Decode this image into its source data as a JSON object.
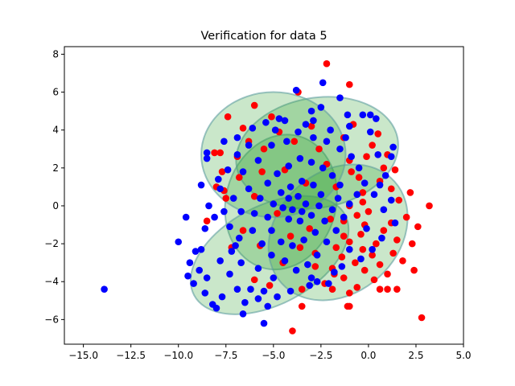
{
  "chart_data": {
    "type": "scatter",
    "title": "Verification for data 5",
    "xlabel": "",
    "ylabel": "",
    "xlim": [
      -16.0,
      5.0
    ],
    "ylim": [
      -7.3,
      8.4
    ],
    "xticks": [
      -15.0,
      -12.5,
      -10.0,
      -7.5,
      -5.0,
      -2.5,
      0.0,
      2.5,
      5.0
    ],
    "xtick_labels": [
      "−15.0",
      "−12.5",
      "−10.0",
      "−7.5",
      "−5.0",
      "−2.5",
      "0.0",
      "2.5",
      "5.0"
    ],
    "yticks": [
      -6,
      -4,
      -2,
      0,
      2,
      4,
      6,
      8
    ],
    "ytick_labels": [
      "−6",
      "−4",
      "−2",
      "0",
      "2",
      "4",
      "6",
      "8"
    ],
    "grid": false,
    "legend": "none",
    "colors": {
      "red_points": "#ff0000",
      "blue_points": "#0000ff",
      "ellipse_fill": "#2ca02c",
      "ellipse_edge": "#5f9ea0"
    },
    "ellipses": [
      {
        "cx": -4.6,
        "cy": 0.2,
        "rx": 2.9,
        "ry": 3.6,
        "angle_deg": -15
      },
      {
        "cx": -2.7,
        "cy": 2.8,
        "rx": 4.3,
        "ry": 2.9,
        "angle_deg": 10
      },
      {
        "cx": -5.2,
        "cy": -2.6,
        "rx": 4.5,
        "ry": 2.6,
        "angle_deg": 28
      },
      {
        "cx": -1.6,
        "cy": -1.4,
        "rx": 4.0,
        "ry": 3.2,
        "angle_deg": 42
      },
      {
        "cx": -5.0,
        "cy": 2.7,
        "rx": 3.8,
        "ry": 3.3,
        "angle_deg": 0
      }
    ],
    "series": [
      {
        "color": "red",
        "points": [
          [
            -2.2,
            7.5
          ],
          [
            -1.0,
            6.4
          ],
          [
            -3.7,
            6.0
          ],
          [
            -6.0,
            5.3
          ],
          [
            -5.1,
            4.7
          ],
          [
            -7.4,
            4.7
          ],
          [
            -0.8,
            4.3
          ],
          [
            0.5,
            3.8
          ],
          [
            -6.6,
            4.1
          ],
          [
            -1.3,
            3.6
          ],
          [
            0.2,
            3.2
          ],
          [
            1.0,
            2.7
          ],
          [
            -7.8,
            2.8
          ],
          [
            -8.1,
            2.8
          ],
          [
            -6.9,
            2.6
          ],
          [
            -1.0,
            2.4
          ],
          [
            0.8,
            2.0
          ],
          [
            1.4,
            1.9
          ],
          [
            -7.7,
            1.8
          ],
          [
            -0.5,
            1.5
          ],
          [
            0.6,
            1.3
          ],
          [
            1.2,
            0.9
          ],
          [
            -7.6,
            0.8
          ],
          [
            2.2,
            0.7
          ],
          [
            -0.3,
            0.7
          ],
          [
            -7.5,
            0.4
          ],
          [
            -0.3,
            0.2
          ],
          [
            -1.0,
            0.0
          ],
          [
            3.2,
            0.0
          ],
          [
            1.6,
            0.3
          ],
          [
            0.0,
            -0.3
          ],
          [
            2.0,
            -0.6
          ],
          [
            -0.6,
            -0.5
          ],
          [
            -1.3,
            -0.8
          ],
          [
            1.2,
            -0.9
          ],
          [
            -0.2,
            -1.0
          ],
          [
            0.8,
            -1.3
          ],
          [
            2.6,
            -1.1
          ],
          [
            -0.4,
            -1.5
          ],
          [
            1.5,
            -1.8
          ],
          [
            -1.0,
            -1.9
          ],
          [
            0.4,
            -2.0
          ],
          [
            2.3,
            -2.0
          ],
          [
            -1.7,
            -2.2
          ],
          [
            -0.3,
            -2.3
          ],
          [
            1.3,
            -2.5
          ],
          [
            0.2,
            -2.6
          ],
          [
            -1.4,
            -2.7
          ],
          [
            1.8,
            -2.9
          ],
          [
            -0.7,
            -3.0
          ],
          [
            0.6,
            -3.1
          ],
          [
            -1.9,
            -3.3
          ],
          [
            2.4,
            -3.4
          ],
          [
            -0.2,
            -3.4
          ],
          [
            1.0,
            -3.6
          ],
          [
            -1.3,
            -3.8
          ],
          [
            0.3,
            -3.9
          ],
          [
            -2.3,
            -4.1
          ],
          [
            1.5,
            -4.4
          ],
          [
            -0.6,
            -4.3
          ],
          [
            -1.9,
            -4.4
          ],
          [
            0.6,
            -4.4
          ],
          [
            -1.0,
            -4.6
          ],
          [
            -1.0,
            -5.3
          ],
          [
            -3.5,
            -4.4
          ],
          [
            -5.2,
            -4.2
          ],
          [
            -6.0,
            -3.9
          ],
          [
            -3.5,
            -5.3
          ],
          [
            -1.1,
            -5.3
          ],
          [
            -4.0,
            -6.6
          ],
          [
            2.8,
            -5.9
          ],
          [
            1.0,
            -4.4
          ],
          [
            -8.5,
            -0.8
          ],
          [
            -7.2,
            -2.2
          ],
          [
            -6.6,
            -1.3
          ],
          [
            -8.0,
            1.0
          ],
          [
            -5.6,
            1.8
          ],
          [
            -4.1,
            -1.6
          ],
          [
            -2.8,
            -2.5
          ],
          [
            -3.3,
            1.2
          ],
          [
            -2.0,
            -0.7
          ],
          [
            -4.8,
            -0.4
          ],
          [
            -6.0,
            0.5
          ],
          [
            -2.6,
            3.0
          ],
          [
            -3.9,
            3.4
          ],
          [
            -5.5,
            3.0
          ],
          [
            -4.4,
            1.9
          ],
          [
            -1.7,
            1.0
          ],
          [
            -3.1,
            -1.2
          ],
          [
            -5.7,
            -2.1
          ],
          [
            -2.2,
            2.2
          ],
          [
            -1.3,
            -1.6
          ],
          [
            -4.7,
            3.9
          ],
          [
            -3.0,
            4.2
          ],
          [
            -6.3,
            3.4
          ],
          [
            -6.8,
            1.5
          ],
          [
            -1.8,
            -3.6
          ],
          [
            -2.8,
            -3.2
          ],
          [
            -4.5,
            -3.0
          ],
          [
            -3.6,
            -2.2
          ],
          [
            -0.9,
            1.8
          ],
          [
            -0.1,
            2.6
          ]
        ]
      },
      {
        "color": "blue",
        "points": [
          [
            -13.9,
            -4.4
          ],
          [
            -9.6,
            -0.6
          ],
          [
            -10.0,
            -1.9
          ],
          [
            -9.1,
            -2.4
          ],
          [
            -9.4,
            -3.0
          ],
          [
            -9.5,
            -3.7
          ],
          [
            -8.9,
            -3.4
          ],
          [
            -9.2,
            -4.1
          ],
          [
            -8.6,
            -4.6
          ],
          [
            -8.2,
            -5.2
          ],
          [
            -8.0,
            -5.4
          ],
          [
            -7.7,
            -4.8
          ],
          [
            -8.5,
            -3.8
          ],
          [
            -8.8,
            -2.3
          ],
          [
            -7.8,
            -2.9
          ],
          [
            -7.3,
            -3.6
          ],
          [
            -6.9,
            -4.4
          ],
          [
            -6.6,
            -5.7
          ],
          [
            -5.5,
            -6.2
          ],
          [
            -8.6,
            -1.2
          ],
          [
            -8.1,
            -0.6
          ],
          [
            -8.4,
            0.0
          ],
          [
            -8.8,
            1.1
          ],
          [
            -8.5,
            2.5
          ],
          [
            -8.5,
            2.8
          ],
          [
            -3.8,
            6.1
          ],
          [
            -2.5,
            5.2
          ],
          [
            -2.4,
            6.5
          ],
          [
            -1.5,
            5.7
          ],
          [
            -3.0,
            5.0
          ],
          [
            -0.3,
            4.8
          ],
          [
            0.4,
            4.6
          ],
          [
            0.1,
            4.8
          ],
          [
            -1.1,
            4.8
          ],
          [
            -2.9,
            4.5
          ],
          [
            -4.4,
            4.5
          ],
          [
            -5.4,
            4.4
          ],
          [
            -6.1,
            4.1
          ],
          [
            -6.9,
            3.6
          ],
          [
            -7.6,
            3.4
          ],
          [
            -6.9,
            2.7
          ],
          [
            -7.4,
            1.9
          ],
          [
            -7.9,
            1.4
          ],
          [
            -1.0,
            4.2
          ],
          [
            0.1,
            3.9
          ],
          [
            1.3,
            3.1
          ],
          [
            1.2,
            2.6
          ],
          [
            0.5,
            2.7
          ],
          [
            0.9,
            1.6
          ],
          [
            0.6,
            1.1
          ],
          [
            1.2,
            0.3
          ],
          [
            0.8,
            -0.2
          ],
          [
            1.4,
            -0.9
          ],
          [
            0.7,
            -1.7
          ],
          [
            0.2,
            -2.3
          ],
          [
            -0.4,
            -2.8
          ],
          [
            -1.4,
            -3.2
          ],
          [
            -1.8,
            -3.5
          ],
          [
            -2.1,
            -4.1
          ],
          [
            -3.1,
            -4.2
          ],
          [
            -4.1,
            -4.5
          ],
          [
            -4.8,
            -4.8
          ],
          [
            -5.8,
            -4.9
          ],
          [
            -6.5,
            -5.1
          ],
          [
            -6.2,
            -4.4
          ],
          [
            -5.5,
            -4.5
          ],
          [
            -5.0,
            -3.8
          ],
          [
            -5.8,
            -3.3
          ],
          [
            -6.7,
            -3.0
          ],
          [
            -7.2,
            -2.4
          ],
          [
            -6.8,
            -1.7
          ],
          [
            -7.3,
            -1.1
          ],
          [
            -6.7,
            -0.3
          ],
          [
            -7.1,
            0.4
          ],
          [
            -6.3,
            0.9
          ],
          [
            -6.6,
            1.8
          ],
          [
            -5.8,
            2.4
          ],
          [
            -5.1,
            3.2
          ],
          [
            -4.3,
            3.4
          ],
          [
            -3.7,
            3.9
          ],
          [
            -2.9,
            3.6
          ],
          [
            -2.2,
            3.4
          ],
          [
            -1.5,
            3.0
          ],
          [
            -0.9,
            2.6
          ],
          [
            -0.5,
            2.0
          ],
          [
            -0.2,
            1.2
          ],
          [
            -0.6,
            0.6
          ],
          [
            -1.0,
            0.1
          ],
          [
            -1.3,
            -0.6
          ],
          [
            -1.7,
            -1.3
          ],
          [
            -2.2,
            -1.9
          ],
          [
            -2.7,
            -2.6
          ],
          [
            -3.2,
            -3.1
          ],
          [
            -3.8,
            -3.4
          ],
          [
            -4.4,
            -2.9
          ],
          [
            -5.1,
            -2.6
          ],
          [
            -5.6,
            -2.0
          ],
          [
            -6.1,
            -1.3
          ],
          [
            -6.0,
            -0.4
          ],
          [
            -5.7,
            0.4
          ],
          [
            -5.3,
            1.2
          ],
          [
            -4.8,
            1.7
          ],
          [
            -4.2,
            2.1
          ],
          [
            -3.6,
            2.5
          ],
          [
            -3.0,
            2.3
          ],
          [
            -2.4,
            2.0
          ],
          [
            -1.9,
            1.6
          ],
          [
            -1.5,
            1.1
          ],
          [
            -1.6,
            0.4
          ],
          [
            -1.9,
            -0.2
          ],
          [
            -2.3,
            -0.8
          ],
          [
            -2.8,
            -1.4
          ],
          [
            -3.4,
            -1.8
          ],
          [
            -4.0,
            -2.1
          ],
          [
            -4.6,
            -1.9
          ],
          [
            -5.1,
            -1.3
          ],
          [
            -5.3,
            -0.6
          ],
          [
            -5.0,
            0.1
          ],
          [
            -4.6,
            0.7
          ],
          [
            -4.1,
            1.0
          ],
          [
            -3.5,
            1.3
          ],
          [
            -2.9,
            1.1
          ],
          [
            -2.5,
            0.6
          ],
          [
            -2.6,
            0.0
          ],
          [
            -3.0,
            -0.5
          ],
          [
            -3.6,
            -0.8
          ],
          [
            -4.2,
            -0.7
          ],
          [
            -4.5,
            -0.1
          ],
          [
            -4.2,
            0.4
          ],
          [
            -3.7,
            0.5
          ],
          [
            -3.3,
            0.1
          ],
          [
            -3.5,
            -0.3
          ],
          [
            -4.0,
            -0.2
          ],
          [
            -6.3,
            3.2
          ],
          [
            -4.9,
            4.0
          ],
          [
            -3.3,
            4.3
          ],
          [
            -2.0,
            4.0
          ],
          [
            -1.2,
            3.6
          ],
          [
            -7.6,
            -0.3
          ],
          [
            -7.0,
            -2.1
          ],
          [
            -5.3,
            -5.3
          ],
          [
            -3.0,
            -3.8
          ],
          [
            -1.0,
            -2.3
          ],
          [
            -0.1,
            -1.2
          ],
          [
            0.3,
            0.6
          ],
          [
            -7.8,
            0.9
          ],
          [
            -2.7,
            -4.0
          ],
          [
            -4.7,
            4.6
          ]
        ]
      }
    ]
  }
}
